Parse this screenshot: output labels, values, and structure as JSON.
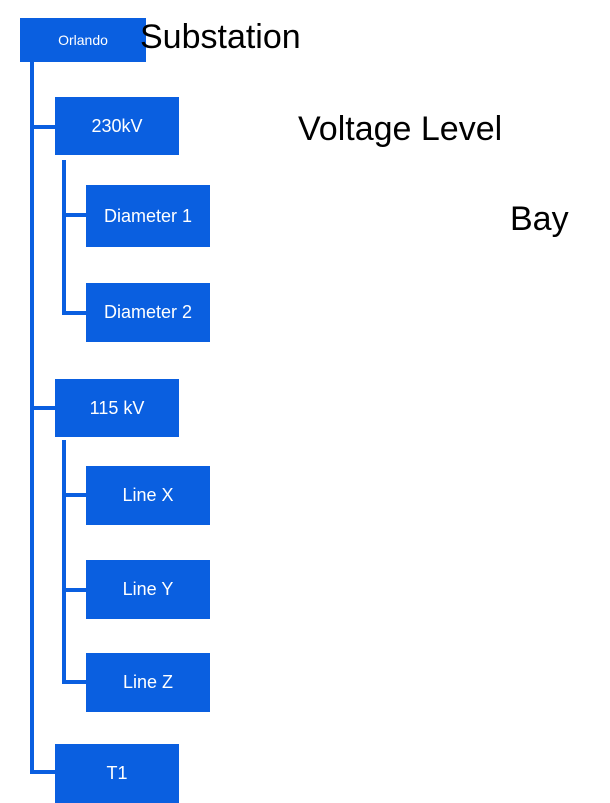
{
  "nodes": [
    {
      "label": "Orlando"
    },
    {
      "label": "230kV"
    },
    {
      "label": "Diameter 1"
    },
    {
      "label": "Diameter 2"
    },
    {
      "label": "115 kV"
    },
    {
      "label": "Line X"
    },
    {
      "label": "Line Y"
    },
    {
      "label": "Line Z"
    },
    {
      "label": "T1"
    }
  ],
  "levels": [
    {
      "label": "Substation"
    },
    {
      "label": "Voltage Level"
    },
    {
      "label": "Bay"
    }
  ]
}
